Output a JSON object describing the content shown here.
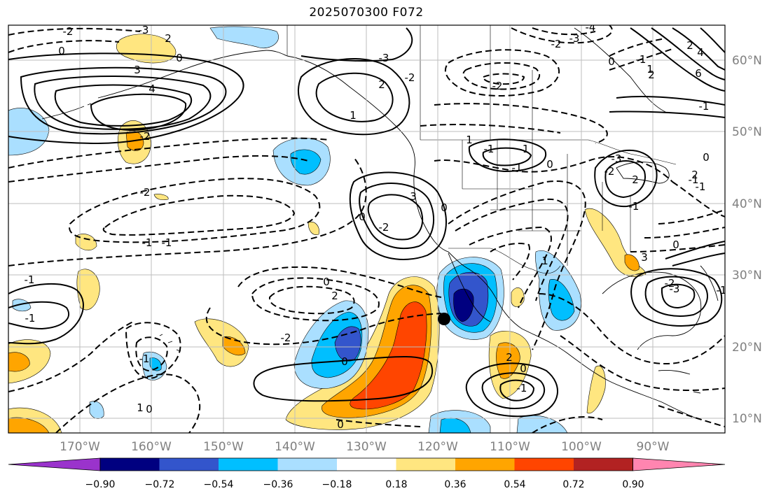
{
  "title": "2025070300 F072",
  "map": {
    "projection": "PlateCarree",
    "lon_range": [
      -178,
      -78
    ],
    "lat_range": [
      8,
      65
    ],
    "gridlines": true
  },
  "lon_labels": [
    "170°W",
    "160°W",
    "150°W",
    "140°W",
    "130°W",
    "120°W",
    "110°W",
    "100°W",
    "90°W"
  ],
  "lat_labels": [
    "60°N",
    "50°N",
    "40°N",
    "30°N",
    "20°N",
    "10°N"
  ],
  "colorbar": {
    "extend": "both",
    "colors": [
      "#9a33cc",
      "#000080",
      "#3355cc",
      "#00bfff",
      "#aadfff",
      "#ffffff",
      "#ffe680",
      "#ffa500",
      "#ff4500",
      "#b22222",
      "#ff85b0"
    ],
    "tick_labels": [
      "−0.90",
      "−0.72",
      "−0.54",
      "−0.36",
      "−0.18",
      "0.18",
      "0.36",
      "0.54",
      "0.72",
      "0.90"
    ]
  },
  "contour_labels": [
    "-2",
    "0",
    "-3",
    "2",
    "0",
    "-1",
    "3",
    "4",
    "-2",
    "-4",
    "-3",
    "-2",
    "0",
    "-1",
    "1",
    "2",
    "4",
    "2",
    "6",
    "-2",
    "-1",
    "-2",
    "-3",
    "2",
    "1",
    "3",
    "-2",
    "0",
    "-1",
    "0",
    "-1",
    "1",
    "-1",
    "-1",
    "0",
    "-3",
    "-2",
    "2",
    "-1",
    "0",
    "-1",
    "2",
    "-1",
    "0",
    "3",
    "-2",
    "-3",
    "1",
    "-1",
    "0",
    "2",
    "-2",
    "-1",
    "-1",
    "0",
    "-1",
    "-2",
    "0",
    "1",
    "0",
    "2",
    "0",
    "-1"
  ],
  "marker": {
    "name": "storm-center-marker",
    "lon": -120,
    "lat": 23.5
  }
}
